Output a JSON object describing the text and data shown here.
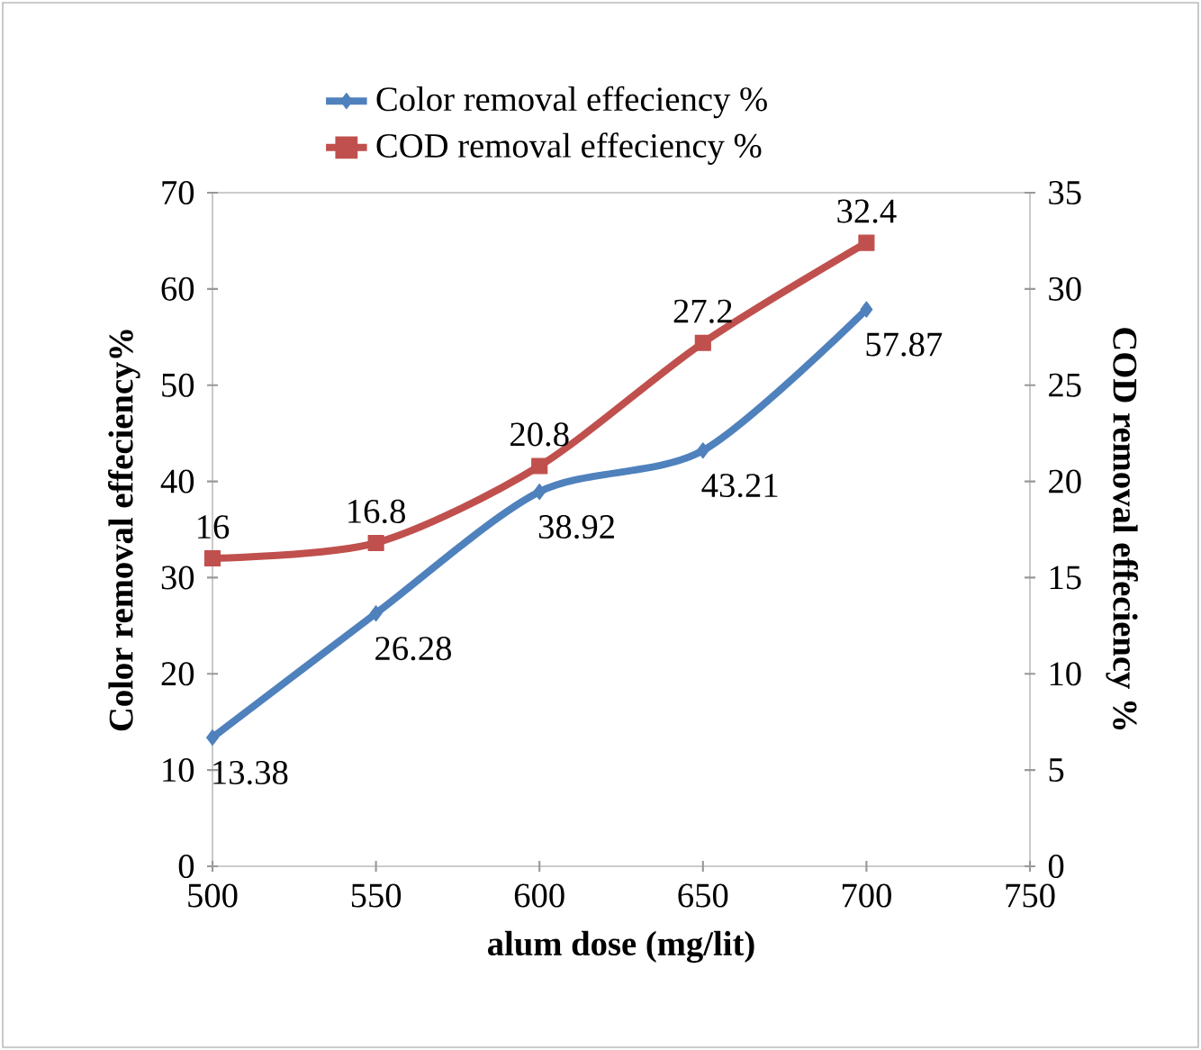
{
  "chart_data": {
    "type": "line",
    "xlabel": "alum dose (mg/lit)",
    "ylabel": "Color removal effeciency%",
    "y2label": "COD removal effeciency %",
    "x": [
      500,
      550,
      600,
      650,
      700
    ],
    "series": [
      {
        "name": "Color removal effeciency %",
        "color": "#4f81bd",
        "marker": "diamond",
        "values": [
          13.38,
          26.28,
          38.92,
          43.21,
          57.87
        ]
      },
      {
        "name": "COD removal effeciency %",
        "color": "#c0504d",
        "marker": "square",
        "axis": "y2",
        "values": [
          16,
          16.8,
          20.8,
          27.2,
          32.4
        ]
      }
    ],
    "xlim": [
      500,
      750
    ],
    "xticks": [
      500,
      550,
      600,
      650,
      700,
      750
    ],
    "ylim": [
      0,
      70
    ],
    "yticks": [
      0,
      10,
      20,
      30,
      40,
      50,
      60,
      70
    ],
    "y2lim": [
      0,
      35
    ],
    "y2ticks": [
      0,
      5,
      10,
      15,
      20,
      25,
      30,
      35
    ],
    "legend": "top",
    "data_labels": true,
    "grid": false
  }
}
